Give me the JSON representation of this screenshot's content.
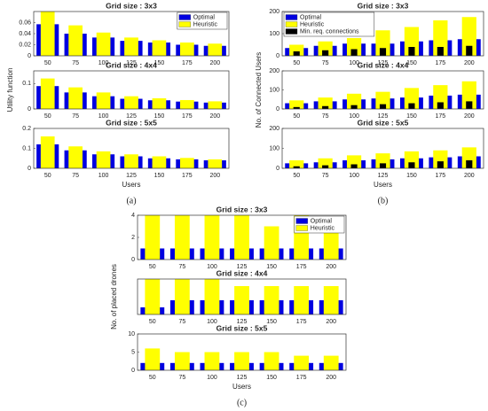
{
  "chart_data": [
    {
      "type": "bar",
      "title": "Grid size : 3x3",
      "categories": [
        50,
        75,
        100,
        125,
        150,
        175,
        200
      ],
      "series": [
        {
          "name": "Optimal",
          "color": "#0000e0",
          "values": [
            0.057,
            0.04,
            0.033,
            0.027,
            0.024,
            0.02,
            0.018
          ]
        },
        {
          "name": "Heuristic",
          "color": "#ffff00",
          "values": [
            0.08,
            0.055,
            0.042,
            0.033,
            0.028,
            0.024,
            0.022
          ]
        }
      ],
      "ylim": [
        0,
        0.08
      ],
      "yticks": [
        0,
        0.02,
        0.04,
        0.06
      ],
      "legend": "upper right"
    },
    {
      "type": "bar",
      "title": "Grid size : 4x4",
      "categories": [
        50,
        75,
        100,
        125,
        150,
        175,
        200
      ],
      "series": [
        {
          "color": "#0000e0",
          "values": [
            0.09,
            0.065,
            0.05,
            0.04,
            0.034,
            0.029,
            0.025
          ]
        },
        {
          "color": "#ffff00",
          "values": [
            0.12,
            0.085,
            0.065,
            0.05,
            0.042,
            0.035,
            0.03
          ]
        }
      ],
      "ylim": [
        0,
        0.15
      ],
      "yticks": [
        0,
        0.1
      ],
      "y_label": "Utility function"
    },
    {
      "type": "bar",
      "title": "Grid size : 5x5",
      "categories": [
        50,
        75,
        100,
        125,
        150,
        175,
        200
      ],
      "series": [
        {
          "color": "#0000e0",
          "values": [
            0.12,
            0.09,
            0.07,
            0.06,
            0.05,
            0.045,
            0.04
          ]
        },
        {
          "color": "#ffff00",
          "values": [
            0.16,
            0.11,
            0.085,
            0.07,
            0.06,
            0.052,
            0.045
          ]
        }
      ],
      "ylim": [
        0,
        0.2
      ],
      "yticks": [
        0,
        0.1,
        0.2
      ],
      "x_label": "Users",
      "caption": "(a)"
    },
    {
      "type": "bar",
      "title": "Grid size : 3x3",
      "categories": [
        50,
        75,
        100,
        125,
        150,
        175,
        200
      ],
      "series": [
        {
          "name": "Optimal",
          "color": "#0000e0",
          "values": [
            35,
            45,
            55,
            55,
            65,
            70,
            75
          ]
        },
        {
          "name": "Heuristic",
          "color": "#ffff00",
          "values": [
            50,
            65,
            80,
            115,
            130,
            160,
            175
          ]
        },
        {
          "name": "Min. req. connections",
          "color": "#000000",
          "values": [
            20,
            25,
            30,
            35,
            40,
            40,
            45
          ]
        }
      ],
      "ylim": [
        0,
        200
      ],
      "yticks": [
        0,
        100,
        200
      ],
      "legend": "upper left"
    },
    {
      "type": "bar",
      "title": "Grid size : 4x4",
      "categories": [
        50,
        75,
        100,
        125,
        150,
        175,
        200
      ],
      "series": [
        {
          "color": "#0000e0",
          "values": [
            30,
            40,
            50,
            55,
            60,
            70,
            75
          ]
        },
        {
          "color": "#ffff00",
          "values": [
            45,
            60,
            80,
            90,
            110,
            125,
            145
          ]
        },
        {
          "color": "#000000",
          "values": [
            10,
            15,
            20,
            25,
            30,
            35,
            40
          ]
        }
      ],
      "ylim": [
        0,
        200
      ],
      "yticks": [
        0,
        100,
        200
      ],
      "y_label": "No. of Connected Users"
    },
    {
      "type": "bar",
      "title": "Grid size : 5x5",
      "categories": [
        50,
        75,
        100,
        125,
        150,
        175,
        200
      ],
      "series": [
        {
          "color": "#0000e0",
          "values": [
            25,
            30,
            40,
            45,
            50,
            55,
            60
          ]
        },
        {
          "color": "#ffff00",
          "values": [
            40,
            50,
            65,
            75,
            85,
            90,
            105
          ]
        },
        {
          "color": "#000000",
          "values": [
            10,
            15,
            20,
            25,
            30,
            35,
            40
          ]
        }
      ],
      "ylim": [
        0,
        200
      ],
      "yticks": [
        0,
        100,
        200
      ],
      "x_label": "Users",
      "caption": "(b)"
    },
    {
      "type": "bar",
      "title": "Grid size : 3x3",
      "categories": [
        50,
        75,
        100,
        125,
        150,
        175,
        200
      ],
      "series": [
        {
          "name": "Optimal",
          "color": "#0000e0",
          "values": [
            1,
            1,
            1,
            1,
            1,
            1,
            1
          ]
        },
        {
          "name": "Heuristic",
          "color": "#ffff00",
          "values": [
            4,
            4,
            4,
            4,
            3,
            4,
            3
          ]
        }
      ],
      "ylim": [
        0,
        4
      ],
      "yticks": [
        0,
        2,
        4
      ],
      "legend": "upper right"
    },
    {
      "type": "bar",
      "title": "Grid size : 4x4",
      "categories": [
        50,
        75,
        100,
        125,
        150,
        175,
        200
      ],
      "series": [
        {
          "color": "#0000e0",
          "values": [
            1,
            2,
            2,
            2,
            2,
            2,
            2
          ]
        },
        {
          "color": "#ffff00",
          "values": [
            5,
            5,
            5,
            4,
            4,
            4,
            4
          ]
        }
      ],
      "ylim": [
        0,
        5
      ],
      "yticks": [],
      "y_label": "No. of placed drones"
    },
    {
      "type": "bar",
      "title": "Grid size : 5x5",
      "categories": [
        50,
        75,
        100,
        125,
        150,
        175,
        200
      ],
      "series": [
        {
          "color": "#0000e0",
          "values": [
            2,
            2,
            2,
            2,
            2,
            2,
            2
          ]
        },
        {
          "color": "#ffff00",
          "values": [
            6,
            5,
            5,
            5,
            5,
            4,
            4
          ]
        }
      ],
      "ylim": [
        0,
        10
      ],
      "yticks": [
        0,
        5,
        10
      ],
      "x_label": "Users",
      "caption": "(c)"
    }
  ]
}
